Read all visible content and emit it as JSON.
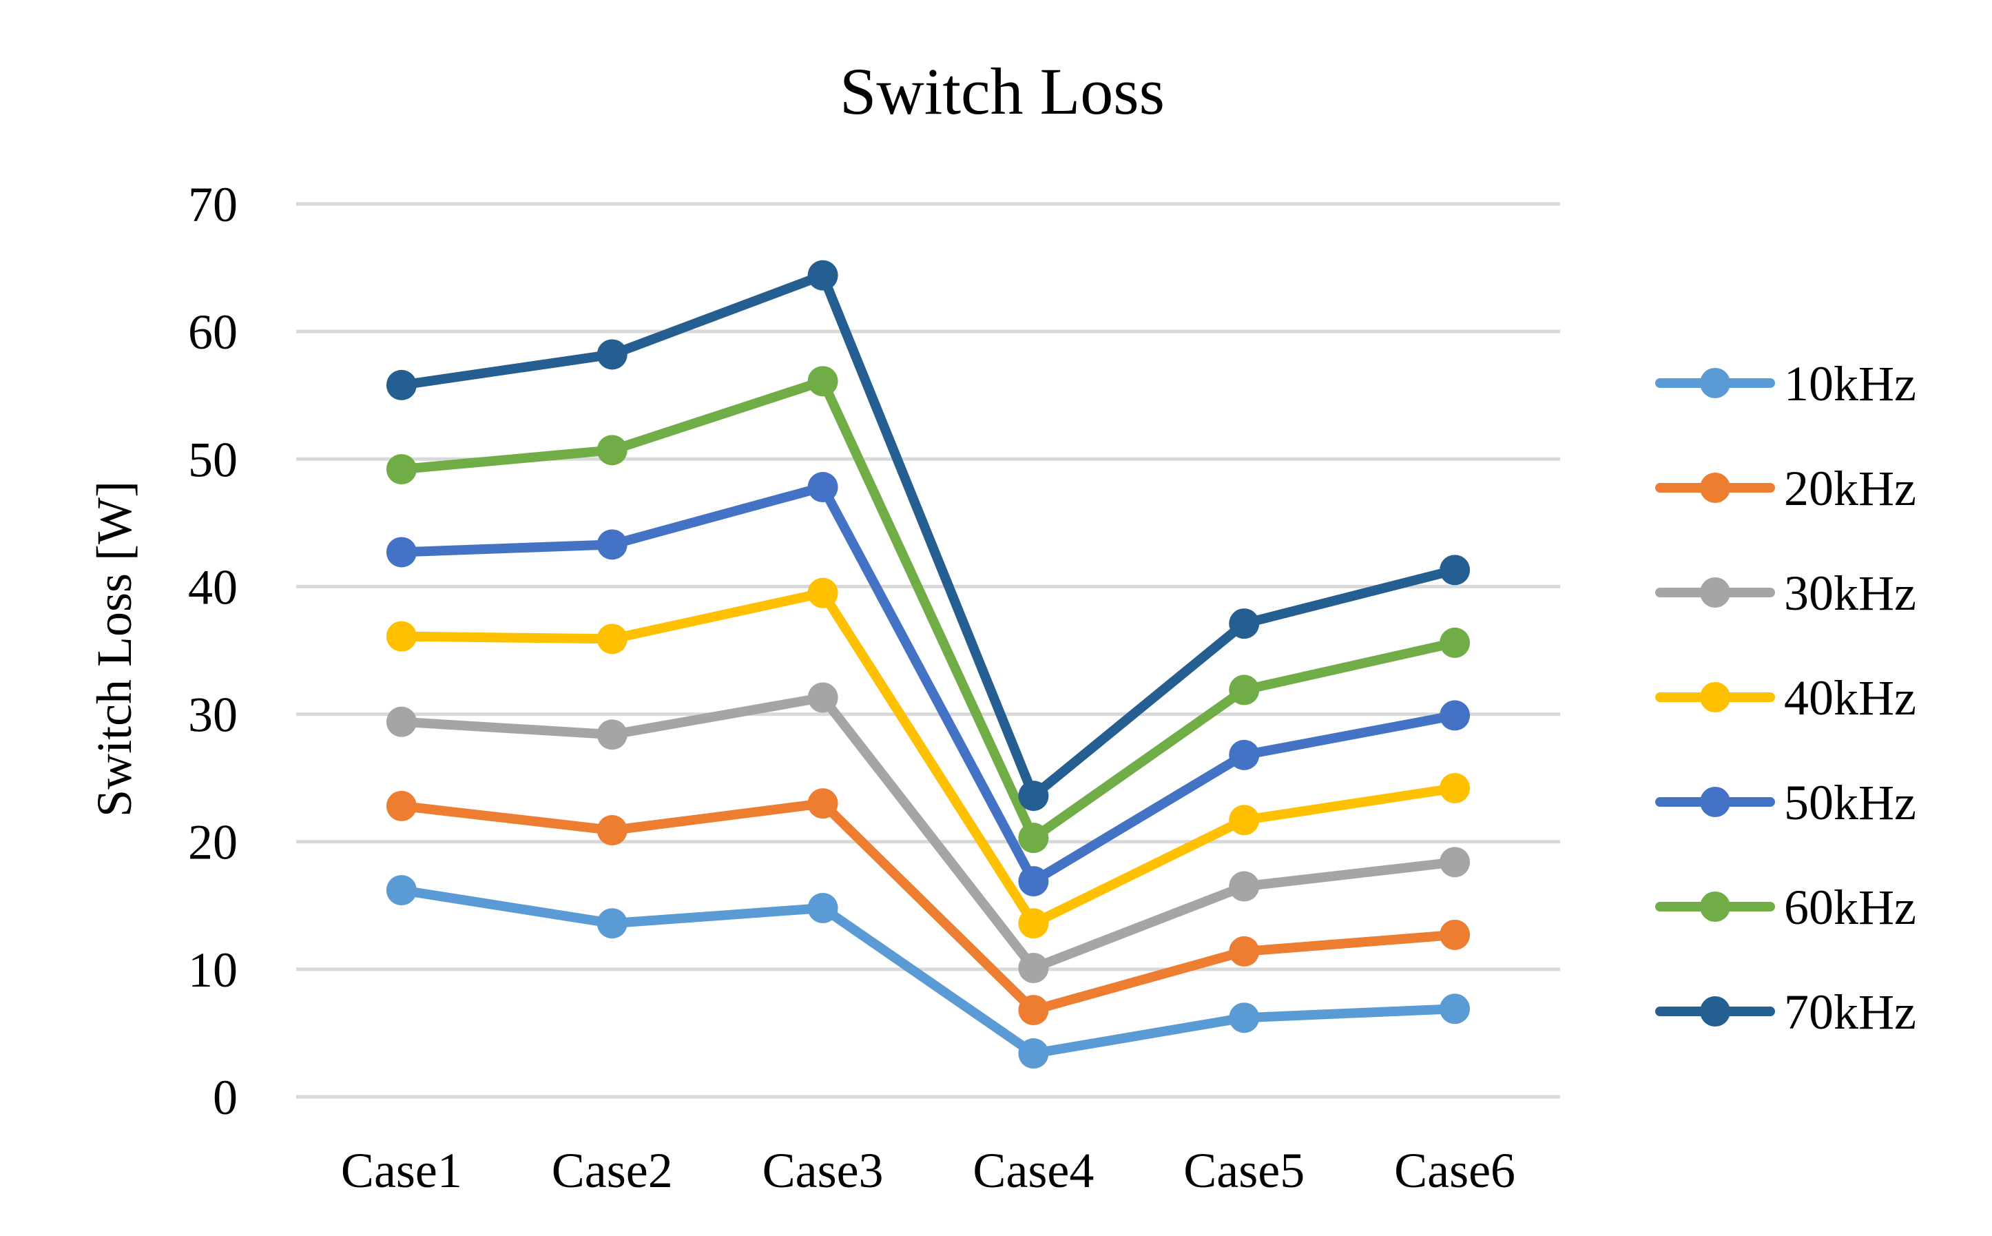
{
  "chart_data": {
    "type": "line",
    "title": "Switch Loss",
    "xlabel": "",
    "ylabel": "Switch Loss [W]",
    "ylim": [
      0,
      70
    ],
    "yticks": [
      0,
      10,
      20,
      30,
      40,
      50,
      60,
      70
    ],
    "grid": true,
    "legend_position": "right",
    "categories": [
      "Case1",
      "Case2",
      "Case3",
      "Case4",
      "Case5",
      "Case6"
    ],
    "series": [
      {
        "name": "10kHz",
        "color": "#5b9bd5",
        "values": [
          16.2,
          13.6,
          14.8,
          3.4,
          6.2,
          6.9
        ]
      },
      {
        "name": "20kHz",
        "color": "#ed7d31",
        "values": [
          22.8,
          20.9,
          23.0,
          6.8,
          11.4,
          12.7
        ]
      },
      {
        "name": "30kHz",
        "color": "#a5a5a5",
        "values": [
          29.4,
          28.4,
          31.3,
          10.1,
          16.5,
          18.4
        ]
      },
      {
        "name": "40kHz",
        "color": "#ffc000",
        "values": [
          36.1,
          35.9,
          39.5,
          13.6,
          21.7,
          24.2
        ]
      },
      {
        "name": "50kHz",
        "color": "#4472c4",
        "values": [
          42.7,
          43.3,
          47.8,
          16.9,
          26.8,
          29.9
        ]
      },
      {
        "name": "60kHz",
        "color": "#70ad47",
        "values": [
          49.2,
          50.7,
          56.1,
          20.3,
          31.9,
          35.6
        ]
      },
      {
        "name": "70kHz",
        "color": "#255e91",
        "values": [
          55.8,
          58.2,
          64.4,
          23.6,
          37.1,
          41.3
        ]
      }
    ]
  }
}
